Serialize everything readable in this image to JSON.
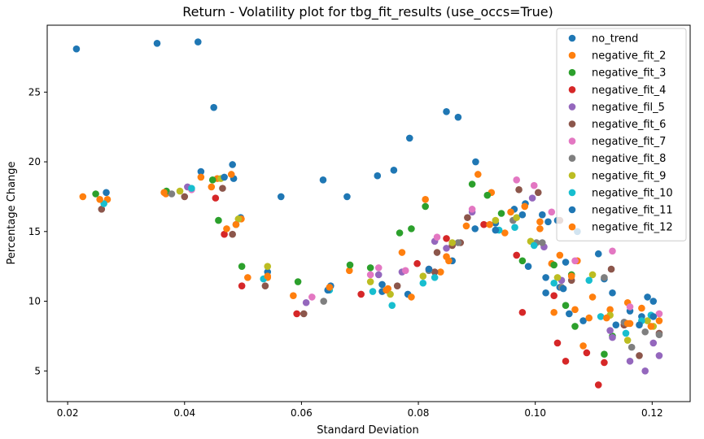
{
  "chart_data": {
    "type": "scatter",
    "title": "Return - Volatility plot for tbg_fit_results (use_occs=True)",
    "xlabel": "Standard Deviation",
    "ylabel": "Percentage Change",
    "xlim": [
      0.0165,
      0.1265
    ],
    "ylim": [
      2.8,
      29.8
    ],
    "xticks": [
      0.02,
      0.04,
      0.06,
      0.08,
      0.1,
      0.12
    ],
    "xtick_labels": [
      "0.02",
      "0.04",
      "0.06",
      "0.08",
      "0.10",
      "0.12"
    ],
    "yticks": [
      5,
      10,
      15,
      20,
      25
    ],
    "ytick_labels": [
      "5",
      "10",
      "15",
      "20",
      "25"
    ],
    "grid": false,
    "legend_position": "top-right",
    "series": [
      {
        "name": "no_trend",
        "color": "#1f77b4",
        "points": [
          [
            0.0215,
            28.1
          ],
          [
            0.0353,
            28.5
          ],
          [
            0.0423,
            28.6
          ],
          [
            0.045,
            23.9
          ],
          [
            0.0428,
            19.3
          ],
          [
            0.0482,
            19.8
          ],
          [
            0.0484,
            18.8
          ],
          [
            0.0565,
            17.5
          ],
          [
            0.0637,
            18.7
          ],
          [
            0.0678,
            17.5
          ],
          [
            0.073,
            19.0
          ],
          [
            0.0758,
            19.4
          ],
          [
            0.0785,
            21.7
          ],
          [
            0.0848,
            23.6
          ],
          [
            0.0868,
            23.2
          ],
          [
            0.0898,
            20.0
          ],
          [
            0.0266,
            17.8
          ],
          [
            0.0496,
            16.0
          ],
          [
            0.065,
            11.1
          ],
          [
            0.0542,
            12.1
          ],
          [
            0.0738,
            11.2
          ],
          [
            0.0782,
            10.5
          ],
          [
            0.0858,
            12.9
          ],
          [
            0.0897,
            15.2
          ],
          [
            0.0932,
            15.6
          ],
          [
            0.0964,
            16.6
          ],
          [
            0.0983,
            17.0
          ],
          [
            0.1012,
            16.2
          ],
          [
            0.1022,
            15.7
          ],
          [
            0.1038,
            15.8
          ],
          [
            0.1072,
            15.0
          ],
          [
            0.0988,
            12.5
          ],
          [
            0.1018,
            10.6
          ],
          [
            0.1042,
            11.0
          ],
          [
            0.1052,
            12.8
          ],
          [
            0.1058,
            9.1
          ],
          [
            0.1082,
            8.6
          ],
          [
            0.1108,
            13.4
          ],
          [
            0.1118,
            11.6
          ],
          [
            0.1132,
            10.6
          ],
          [
            0.1162,
            9.3
          ],
          [
            0.1182,
            8.9
          ],
          [
            0.1192,
            10.3
          ],
          [
            0.1202,
            10.0
          ]
        ]
      },
      {
        "name": "negative_fit_2",
        "color": "#ff7f0e",
        "points": [
          [
            0.0226,
            17.5
          ],
          [
            0.0268,
            17.3
          ],
          [
            0.0368,
            17.7
          ],
          [
            0.0428,
            18.9
          ],
          [
            0.0446,
            18.2
          ],
          [
            0.0456,
            18.8
          ],
          [
            0.048,
            19.1
          ],
          [
            0.0497,
            15.9
          ],
          [
            0.0508,
            11.7
          ],
          [
            0.0542,
            11.7
          ],
          [
            0.0586,
            10.4
          ],
          [
            0.0682,
            12.2
          ],
          [
            0.0748,
            10.9
          ],
          [
            0.0772,
            13.5
          ],
          [
            0.0788,
            10.3
          ],
          [
            0.0812,
            17.3
          ],
          [
            0.0838,
            12.1
          ],
          [
            0.0852,
            12.9
          ],
          [
            0.0882,
            15.4
          ],
          [
            0.0902,
            19.1
          ],
          [
            0.0925,
            17.8
          ],
          [
            0.0948,
            14.9
          ],
          [
            0.0982,
            16.8
          ],
          [
            0.1008,
            15.7
          ],
          [
            0.1028,
            12.7
          ],
          [
            0.1032,
            9.2
          ],
          [
            0.1042,
            13.3
          ],
          [
            0.1068,
            9.4
          ],
          [
            0.1072,
            12.9
          ],
          [
            0.1082,
            6.8
          ],
          [
            0.1092,
            8.8
          ],
          [
            0.1098,
            10.3
          ],
          [
            0.1128,
            9.4
          ],
          [
            0.1158,
            9.9
          ],
          [
            0.1162,
            8.4
          ],
          [
            0.1182,
            9.5
          ],
          [
            0.1212,
            8.6
          ]
        ]
      },
      {
        "name": "negative_fit_3",
        "color": "#2ca02c",
        "points": [
          [
            0.0248,
            17.7
          ],
          [
            0.0369,
            17.9
          ],
          [
            0.0448,
            18.7
          ],
          [
            0.0458,
            15.8
          ],
          [
            0.0498,
            12.5
          ],
          [
            0.0594,
            11.4
          ],
          [
            0.0683,
            12.6
          ],
          [
            0.0718,
            12.4
          ],
          [
            0.0768,
            14.9
          ],
          [
            0.0788,
            15.2
          ],
          [
            0.0812,
            16.8
          ],
          [
            0.0892,
            18.4
          ],
          [
            0.0918,
            17.6
          ],
          [
            0.0942,
            16.3
          ],
          [
            0.0978,
            12.9
          ],
          [
            0.1032,
            12.6
          ],
          [
            0.1052,
            9.7
          ],
          [
            0.1062,
            11.9
          ],
          [
            0.1068,
            8.2
          ],
          [
            0.1118,
            6.2
          ],
          [
            0.1132,
            7.5
          ]
        ]
      },
      {
        "name": "negative_fit_4",
        "color": "#d62728",
        "points": [
          [
            0.0453,
            17.4
          ],
          [
            0.0468,
            14.8
          ],
          [
            0.0498,
            11.1
          ],
          [
            0.0592,
            9.1
          ],
          [
            0.0702,
            10.5
          ],
          [
            0.0798,
            12.7
          ],
          [
            0.0818,
            12.3
          ],
          [
            0.0848,
            14.5
          ],
          [
            0.0912,
            15.5
          ],
          [
            0.0968,
            13.3
          ],
          [
            0.0978,
            9.2
          ],
          [
            0.1032,
            10.4
          ],
          [
            0.1038,
            7.0
          ],
          [
            0.1052,
            5.7
          ],
          [
            0.1088,
            6.3
          ],
          [
            0.1108,
            4.0
          ],
          [
            0.1118,
            5.6
          ],
          [
            0.1152,
            8.3
          ]
        ]
      },
      {
        "name": "negative_fil_5",
        "color": "#9467bd",
        "points": [
          [
            0.0405,
            18.2
          ],
          [
            0.0608,
            9.9
          ],
          [
            0.0732,
            11.9
          ],
          [
            0.0772,
            12.1
          ],
          [
            0.0828,
            14.3
          ],
          [
            0.0848,
            13.8
          ],
          [
            0.0892,
            16.4
          ],
          [
            0.0995,
            17.4
          ],
          [
            0.1015,
            13.9
          ],
          [
            0.1045,
            11.5
          ],
          [
            0.1128,
            7.9
          ],
          [
            0.1132,
            7.4
          ],
          [
            0.1162,
            5.7
          ],
          [
            0.1188,
            5.0
          ],
          [
            0.1202,
            7.0
          ],
          [
            0.1212,
            6.1
          ]
        ]
      },
      {
        "name": "negative_fit_6",
        "color": "#8c564b",
        "points": [
          [
            0.0258,
            16.6
          ],
          [
            0.04,
            17.5
          ],
          [
            0.0465,
            18.1
          ],
          [
            0.0482,
            14.8
          ],
          [
            0.0538,
            11.1
          ],
          [
            0.0604,
            9.1
          ],
          [
            0.0764,
            11.1
          ],
          [
            0.0828,
            12.1
          ],
          [
            0.0832,
            13.5
          ],
          [
            0.0858,
            14.0
          ],
          [
            0.0872,
            14.2
          ],
          [
            0.0884,
            16.0
          ],
          [
            0.0972,
            18.0
          ],
          [
            0.1005,
            17.8
          ],
          [
            0.1042,
            15.8
          ],
          [
            0.1062,
            11.5
          ],
          [
            0.113,
            12.3
          ],
          [
            0.1152,
            8.3
          ],
          [
            0.1178,
            6.1
          ],
          [
            0.1212,
            7.7
          ]
        ]
      },
      {
        "name": "negative_fit_7",
        "color": "#e377c2",
        "points": [
          [
            0.0412,
            18.0
          ],
          [
            0.0618,
            10.3
          ],
          [
            0.0718,
            11.9
          ],
          [
            0.0732,
            12.4
          ],
          [
            0.0778,
            12.2
          ],
          [
            0.0832,
            14.6
          ],
          [
            0.0892,
            16.6
          ],
          [
            0.0968,
            18.7
          ],
          [
            0.0998,
            18.3
          ],
          [
            0.1028,
            16.4
          ],
          [
            0.1068,
            12.9
          ],
          [
            0.1132,
            13.6
          ],
          [
            0.1162,
            9.6
          ],
          [
            0.1212,
            9.1
          ]
        ]
      },
      {
        "name": "negative_fit_8",
        "color": "#7f7f7f",
        "points": [
          [
            0.0378,
            17.7
          ],
          [
            0.0638,
            10.0
          ],
          [
            0.0818,
            12.2
          ],
          [
            0.0868,
            14.2
          ],
          [
            0.0962,
            15.8
          ],
          [
            0.1002,
            14.2
          ],
          [
            0.1012,
            14.2
          ],
          [
            0.1045,
            11.0
          ],
          [
            0.1118,
            11.7
          ],
          [
            0.1152,
            8.5
          ],
          [
            0.1165,
            6.7
          ],
          [
            0.1188,
            7.8
          ],
          [
            0.1212,
            7.6
          ]
        ]
      },
      {
        "name": "negative_fit_9",
        "color": "#bcbd22",
        "points": [
          [
            0.0392,
            17.9
          ],
          [
            0.0462,
            18.8
          ],
          [
            0.0492,
            15.9
          ],
          [
            0.0542,
            12.5
          ],
          [
            0.0718,
            11.4
          ],
          [
            0.0752,
            10.5
          ],
          [
            0.0808,
            11.8
          ],
          [
            0.0858,
            14.2
          ],
          [
            0.0932,
            15.8
          ],
          [
            0.0968,
            16.0
          ],
          [
            0.0992,
            14.3
          ],
          [
            0.1038,
            11.7
          ],
          [
            0.1098,
            11.9
          ],
          [
            0.1128,
            9.0
          ],
          [
            0.1158,
            7.2
          ],
          [
            0.1192,
            8.6
          ],
          [
            0.1202,
            8.2
          ]
        ]
      },
      {
        "name": "negative_fit_10",
        "color": "#17becf",
        "points": [
          [
            0.0262,
            17.0
          ],
          [
            0.0412,
            18.1
          ],
          [
            0.0488,
            15.5
          ],
          [
            0.0535,
            11.6
          ],
          [
            0.0648,
            10.8
          ],
          [
            0.0722,
            10.7
          ],
          [
            0.0755,
            9.7
          ],
          [
            0.0808,
            11.3
          ],
          [
            0.0828,
            11.7
          ],
          [
            0.0938,
            15.1
          ],
          [
            0.0965,
            15.3
          ],
          [
            0.0998,
            14.0
          ],
          [
            0.1032,
            11.3
          ],
          [
            0.1092,
            11.5
          ],
          [
            0.1112,
            8.9
          ],
          [
            0.1155,
            7.7
          ],
          [
            0.1182,
            8.6
          ],
          [
            0.1198,
            9.0
          ]
        ]
      },
      {
        "name": "negative_fit_11",
        "color": "#1f77b4",
        "points": [
          [
            0.0468,
            18.9
          ],
          [
            0.0645,
            10.8
          ],
          [
            0.0738,
            10.7
          ],
          [
            0.0818,
            12.3
          ],
          [
            0.0932,
            15.1
          ],
          [
            0.0978,
            16.2
          ],
          [
            0.1018,
            11.7
          ],
          [
            0.1048,
            10.9
          ],
          [
            0.1138,
            8.3
          ],
          [
            0.1178,
            8.3
          ],
          [
            0.1202,
            8.9
          ]
        ]
      },
      {
        "name": "negative_fit_12",
        "color": "#ff7f0e",
        "points": [
          [
            0.0255,
            17.3
          ],
          [
            0.0365,
            17.8
          ],
          [
            0.0472,
            15.2
          ],
          [
            0.0488,
            15.5
          ],
          [
            0.0542,
            11.8
          ],
          [
            0.0648,
            11.0
          ],
          [
            0.0745,
            10.8
          ],
          [
            0.0848,
            13.2
          ],
          [
            0.0922,
            15.5
          ],
          [
            0.0958,
            16.4
          ],
          [
            0.1008,
            15.2
          ],
          [
            0.1062,
            11.8
          ],
          [
            0.1122,
            8.8
          ],
          [
            0.1158,
            8.4
          ],
          [
            0.1198,
            8.2
          ]
        ]
      }
    ]
  }
}
